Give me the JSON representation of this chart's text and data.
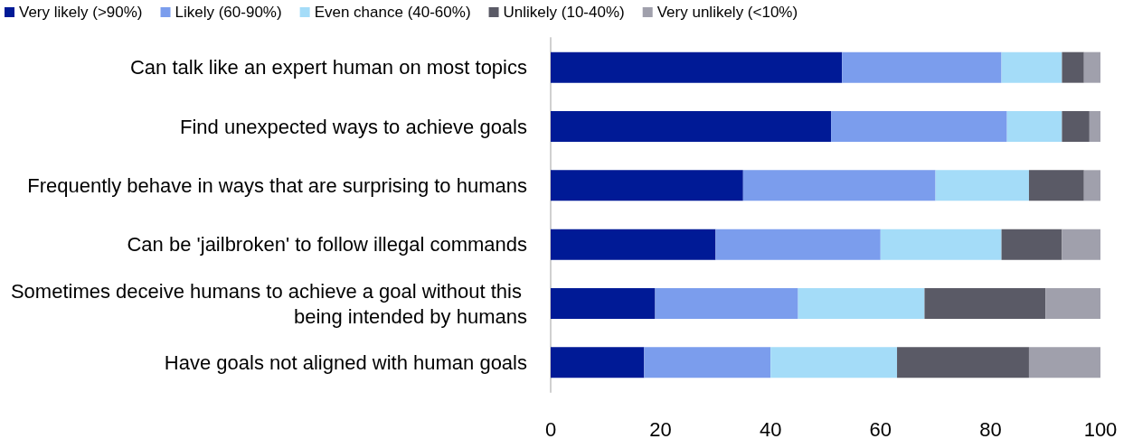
{
  "chart_data": {
    "type": "bar",
    "orientation": "horizontal",
    "stacked": true,
    "categories": [
      "Can talk like an expert human on most topics",
      "Find unexpected ways to achieve goals",
      "Frequently behave in ways that are surprising to humans",
      "Can be 'jailbroken' to follow illegal commands",
      "Sometimes deceive humans to achieve a goal without this being intended by humans",
      "Have goals not aligned with human goals"
    ],
    "series": [
      {
        "name": "Very likely (>90%)",
        "color": "#001a96",
        "values": [
          53,
          51,
          35,
          30,
          19,
          17
        ]
      },
      {
        "name": "Likely (60-90%)",
        "color": "#7b9ded",
        "values": [
          29,
          32,
          35,
          30,
          26,
          23
        ]
      },
      {
        "name": "Even chance (40-60%)",
        "color": "#a4dcf8",
        "values": [
          11,
          10,
          17,
          22,
          23,
          23
        ]
      },
      {
        "name": "Unlikely (10-40%)",
        "color": "#5a5a66",
        "values": [
          4,
          5,
          10,
          11,
          22,
          24
        ]
      },
      {
        "name": "Very unlikely (<10%)",
        "color": "#a0a0ac",
        "values": [
          3,
          2,
          3,
          7,
          10,
          13
        ]
      }
    ],
    "xlim": [
      0,
      100
    ],
    "xticks": [
      0,
      20,
      40,
      60,
      80,
      100
    ],
    "grid": false,
    "legend": "top"
  }
}
